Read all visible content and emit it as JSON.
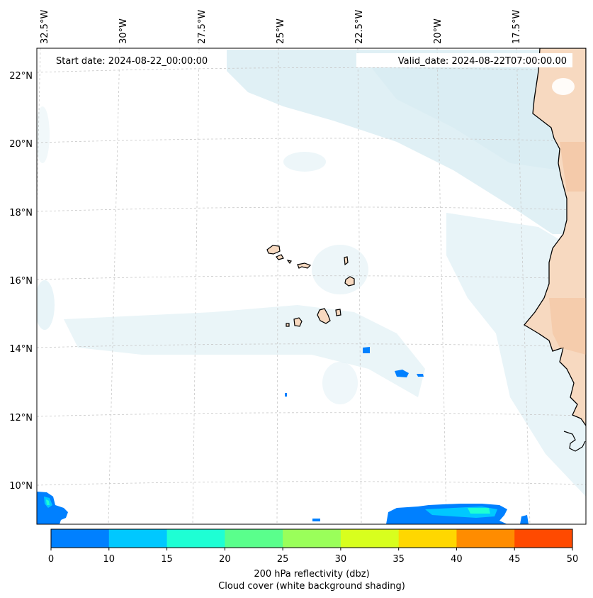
{
  "map": {
    "start_date_text": "Start date: 2024-08-22_00:00:00",
    "valid_date_text": "Valid_date: 2024-08-22T07:00:00.00",
    "lon_labels": [
      "32.5°W",
      "30°W",
      "27.5°W",
      "25°W",
      "22.5°W",
      "20°W",
      "17.5°W"
    ],
    "lat_labels": [
      "22°N",
      "20°N",
      "18°N",
      "16°N",
      "14°N",
      "12°N",
      "10°N"
    ],
    "extent": {
      "lon_min": -32.7,
      "lon_max": -15.9,
      "lat_min": 8.9,
      "lat_max": 22.8
    },
    "colors": {
      "coast": "#000000",
      "land": "#f7d9c0",
      "cloud_light": "#d6ebf2",
      "grid": "#c8c8c8"
    }
  },
  "colorbar": {
    "ticks": [
      "0",
      "10",
      "15",
      "20",
      "25",
      "30",
      "35",
      "40",
      "45",
      "50"
    ],
    "colors": [
      "#0080ff",
      "#00c8ff",
      "#1effd4",
      "#5aff8c",
      "#9aff5a",
      "#d8ff1e",
      "#ffd700",
      "#ff8c00",
      "#ff4a00"
    ],
    "label_line1": "200 hPa reflectivity (dbz)",
    "label_line2": "Cloud cover (white background shading)"
  }
}
